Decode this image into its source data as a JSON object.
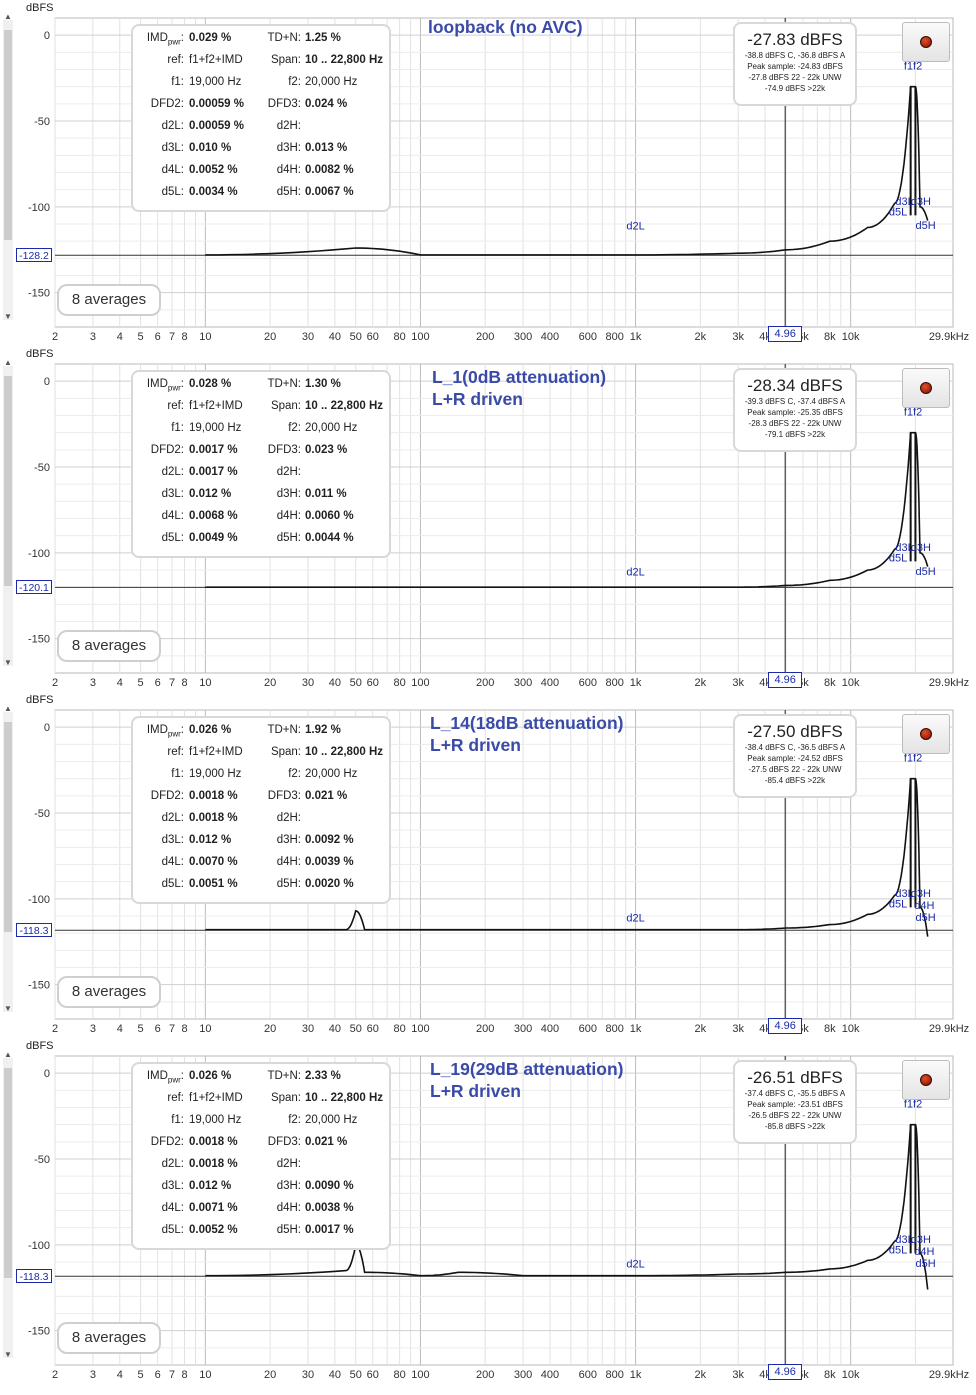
{
  "common": {
    "y_unit": "dBFS",
    "y_ticks": [
      "0",
      "-50",
      "-100",
      "-150"
    ],
    "x_ticks": [
      "2",
      "3",
      "4",
      "5",
      "6",
      "7",
      "8",
      "10",
      "20",
      "30",
      "40",
      "50",
      "60",
      "80",
      "100",
      "200",
      "300",
      "400",
      "600",
      "800",
      "1k",
      "2k",
      "3k",
      "4k",
      "6k",
      "8k",
      "10k",
      "29.9kHz"
    ],
    "cursor_value": "4.96",
    "averages": "8 averages",
    "marker_f12": "f1f2",
    "marker_d2L": "d2L"
  },
  "chart_data": [
    {
      "type": "line",
      "title": "loopback (no AVC)",
      "x_scale": "log",
      "xlim": [
        2,
        29900
      ],
      "ylim": [
        -170,
        10
      ],
      "noise_floor_label": "-128.2",
      "stats": [
        [
          "IMD",
          "0.029 %",
          "TD+N:",
          "1.25 %"
        ],
        [
          "ref:",
          "f1+f2+IMD",
          "Span:",
          "10 .. 22,800 Hz"
        ],
        [
          "f1:",
          "19,000 Hz",
          "f2:",
          "20,000 Hz"
        ],
        [
          "DFD2:",
          "0.00059 %",
          "DFD3:",
          "0.024 %"
        ],
        [
          "d2L:",
          "0.00059 %",
          "d2H:",
          ""
        ],
        [
          "d3L:",
          "0.010 %",
          "d3H:",
          "0.013 %"
        ],
        [
          "d4L:",
          "0.0052 %",
          "d4H:",
          "0.0082 %"
        ],
        [
          "d5L:",
          "0.0034 %",
          "d5H:",
          "0.0067 %"
        ]
      ],
      "level": {
        "main": "-27.83 dBFS",
        "lines": [
          "-38.8 dBFS C, -36.8 dBFS A",
          "Peak sample: -24.83 dBFS",
          "-27.8 dBFS 22 - 22k UNW",
          "-74.9 dBFS >22k"
        ]
      },
      "harm_labels": [
        "d3L",
        "d3H",
        "d5L",
        "d5H"
      ],
      "series": [
        {
          "x": [
            10,
            50,
            100,
            1000,
            3000,
            5000,
            8000,
            12000,
            16000,
            19000,
            20000,
            21000,
            22800
          ],
          "y": [
            -128,
            -124,
            -128,
            -128,
            -127,
            -125,
            -120,
            -112,
            -98,
            -30,
            -30,
            -100,
            -108
          ]
        }
      ]
    },
    {
      "type": "line",
      "title": "L_1(0dB attenuation)\nL+R driven",
      "x_scale": "log",
      "xlim": [
        2,
        29900
      ],
      "ylim": [
        -170,
        10
      ],
      "noise_floor_label": "-120.1",
      "stats": [
        [
          "IMD",
          "0.028 %",
          "TD+N:",
          "1.30 %"
        ],
        [
          "ref:",
          "f1+f2+IMD",
          "Span:",
          "10 .. 22,800 Hz"
        ],
        [
          "f1:",
          "19,000 Hz",
          "f2:",
          "20,000 Hz"
        ],
        [
          "DFD2:",
          "0.0017 %",
          "DFD3:",
          "0.023 %"
        ],
        [
          "d2L:",
          "0.0017 %",
          "d2H:",
          ""
        ],
        [
          "d3L:",
          "0.012 %",
          "d3H:",
          "0.011 %"
        ],
        [
          "d4L:",
          "0.0068 %",
          "d4H:",
          "0.0060 %"
        ],
        [
          "d5L:",
          "0.0049 %",
          "d5H:",
          "0.0044 %"
        ]
      ],
      "level": {
        "main": "-28.34 dBFS",
        "lines": [
          "-39.3 dBFS C, -37.4 dBFS A",
          "Peak sample: -25.35 dBFS",
          "-28.3 dBFS 22 - 22k UNW",
          "-79.1 dBFS >22k"
        ]
      },
      "harm_labels": [
        "d3L",
        "d3H",
        "d5L",
        "d5H"
      ],
      "series": [
        {
          "x": [
            10,
            50,
            100,
            1000,
            3000,
            5000,
            8000,
            12000,
            16000,
            19000,
            20000,
            21000,
            22800
          ],
          "y": [
            -120,
            -120,
            -120,
            -120,
            -120,
            -119,
            -116,
            -110,
            -98,
            -30,
            -30,
            -100,
            -108
          ]
        }
      ]
    },
    {
      "type": "line",
      "title": "L_14(18dB attenuation)\nL+R driven",
      "x_scale": "log",
      "xlim": [
        2,
        29900
      ],
      "ylim": [
        -170,
        10
      ],
      "noise_floor_label": "-118.3",
      "stats": [
        [
          "IMD",
          "0.026 %",
          "TD+N:",
          "1.92 %"
        ],
        [
          "ref:",
          "f1+f2+IMD",
          "Span:",
          "10 .. 22,800 Hz"
        ],
        [
          "f1:",
          "19,000 Hz",
          "f2:",
          "20,000 Hz"
        ],
        [
          "DFD2:",
          "0.0018 %",
          "DFD3:",
          "0.021 %"
        ],
        [
          "d2L:",
          "0.0018 %",
          "d2H:",
          ""
        ],
        [
          "d3L:",
          "0.012 %",
          "d3H:",
          "0.0092 %"
        ],
        [
          "d4L:",
          "0.0070 %",
          "d4H:",
          "0.0039 %"
        ],
        [
          "d5L:",
          "0.0051 %",
          "d5H:",
          "0.0020 %"
        ]
      ],
      "level": {
        "main": "-27.50 dBFS",
        "lines": [
          "-38.4 dBFS C, -36.5 dBFS A",
          "Peak sample: -24.52 dBFS",
          "-27.5 dBFS 22 - 22k UNW",
          "-85.4 dBFS >22k"
        ]
      },
      "harm_labels": [
        "d3L",
        "d3H",
        "d5L",
        "d4H",
        "d5H"
      ],
      "series": [
        {
          "x": [
            10,
            45,
            50,
            55,
            100,
            1000,
            3000,
            5000,
            8000,
            12000,
            16000,
            19000,
            20000,
            21000,
            22800
          ],
          "y": [
            -118,
            -118,
            -107,
            -118,
            -118,
            -118,
            -118,
            -117,
            -115,
            -109,
            -98,
            -30,
            -30,
            -105,
            -122
          ]
        }
      ]
    },
    {
      "type": "line",
      "title": "L_19(29dB attenuation)\nL+R driven",
      "x_scale": "log",
      "xlim": [
        2,
        29900
      ],
      "ylim": [
        -170,
        10
      ],
      "noise_floor_label": "-118.3",
      "stats": [
        [
          "IMD",
          "0.026 %",
          "TD+N:",
          "2.33 %"
        ],
        [
          "ref:",
          "f1+f2+IMD",
          "Span:",
          "10 .. 22,800 Hz"
        ],
        [
          "f1:",
          "19,000 Hz",
          "f2:",
          "20,000 Hz"
        ],
        [
          "DFD2:",
          "0.0018 %",
          "DFD3:",
          "0.021 %"
        ],
        [
          "d2L:",
          "0.0018 %",
          "d2H:",
          ""
        ],
        [
          "d3L:",
          "0.012 %",
          "d3H:",
          "0.0090 %"
        ],
        [
          "d4L:",
          "0.0071 %",
          "d4H:",
          "0.0038 %"
        ],
        [
          "d5L:",
          "0.0052 %",
          "d5H:",
          "0.0017 %"
        ]
      ],
      "level": {
        "main": "-26.51 dBFS",
        "lines": [
          "-37.4 dBFS C, -35.5 dBFS A",
          "Peak sample: -23.51 dBFS",
          "-26.5 dBFS 22 - 22k UNW",
          "-85.8 dBFS >22k"
        ]
      },
      "harm_labels": [
        "d3L",
        "d3H",
        "d5L",
        "d4H",
        "d5H"
      ],
      "series": [
        {
          "x": [
            10,
            45,
            50,
            55,
            100,
            150,
            300,
            1000,
            3000,
            5000,
            8000,
            12000,
            16000,
            19000,
            20000,
            21000,
            22800
          ],
          "y": [
            -118,
            -115,
            -100,
            -116,
            -118,
            -116,
            -118,
            -118,
            -117,
            -116,
            -114,
            -109,
            -98,
            -30,
            -30,
            -105,
            -126
          ]
        }
      ]
    }
  ]
}
